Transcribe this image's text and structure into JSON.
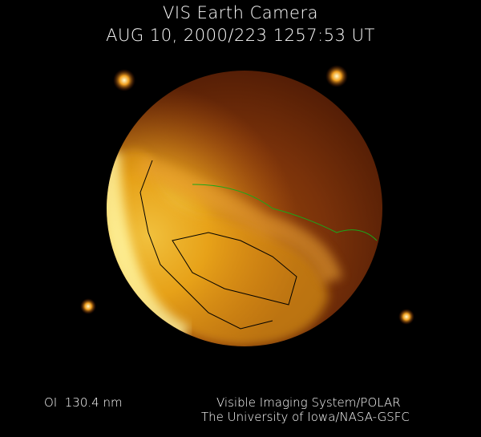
{
  "header": {
    "title": "VIS Earth Camera",
    "timestamp": "AUG 10, 2000/223 1257:53 UT"
  },
  "footer": {
    "wavelength": "OI  130.4 nm",
    "credit_line1": "Visible Imaging System/POLAR",
    "credit_line2": "The University of Iowa/NASA-GSFC"
  },
  "image": {
    "colors": {
      "background": "#000000",
      "disk_dim": "#5a1e05",
      "disk_mid": "#b65a0e",
      "aurora_bright": "#fff07a",
      "coastline_north": "#000000",
      "coastline_south": "#1aa81a"
    }
  }
}
